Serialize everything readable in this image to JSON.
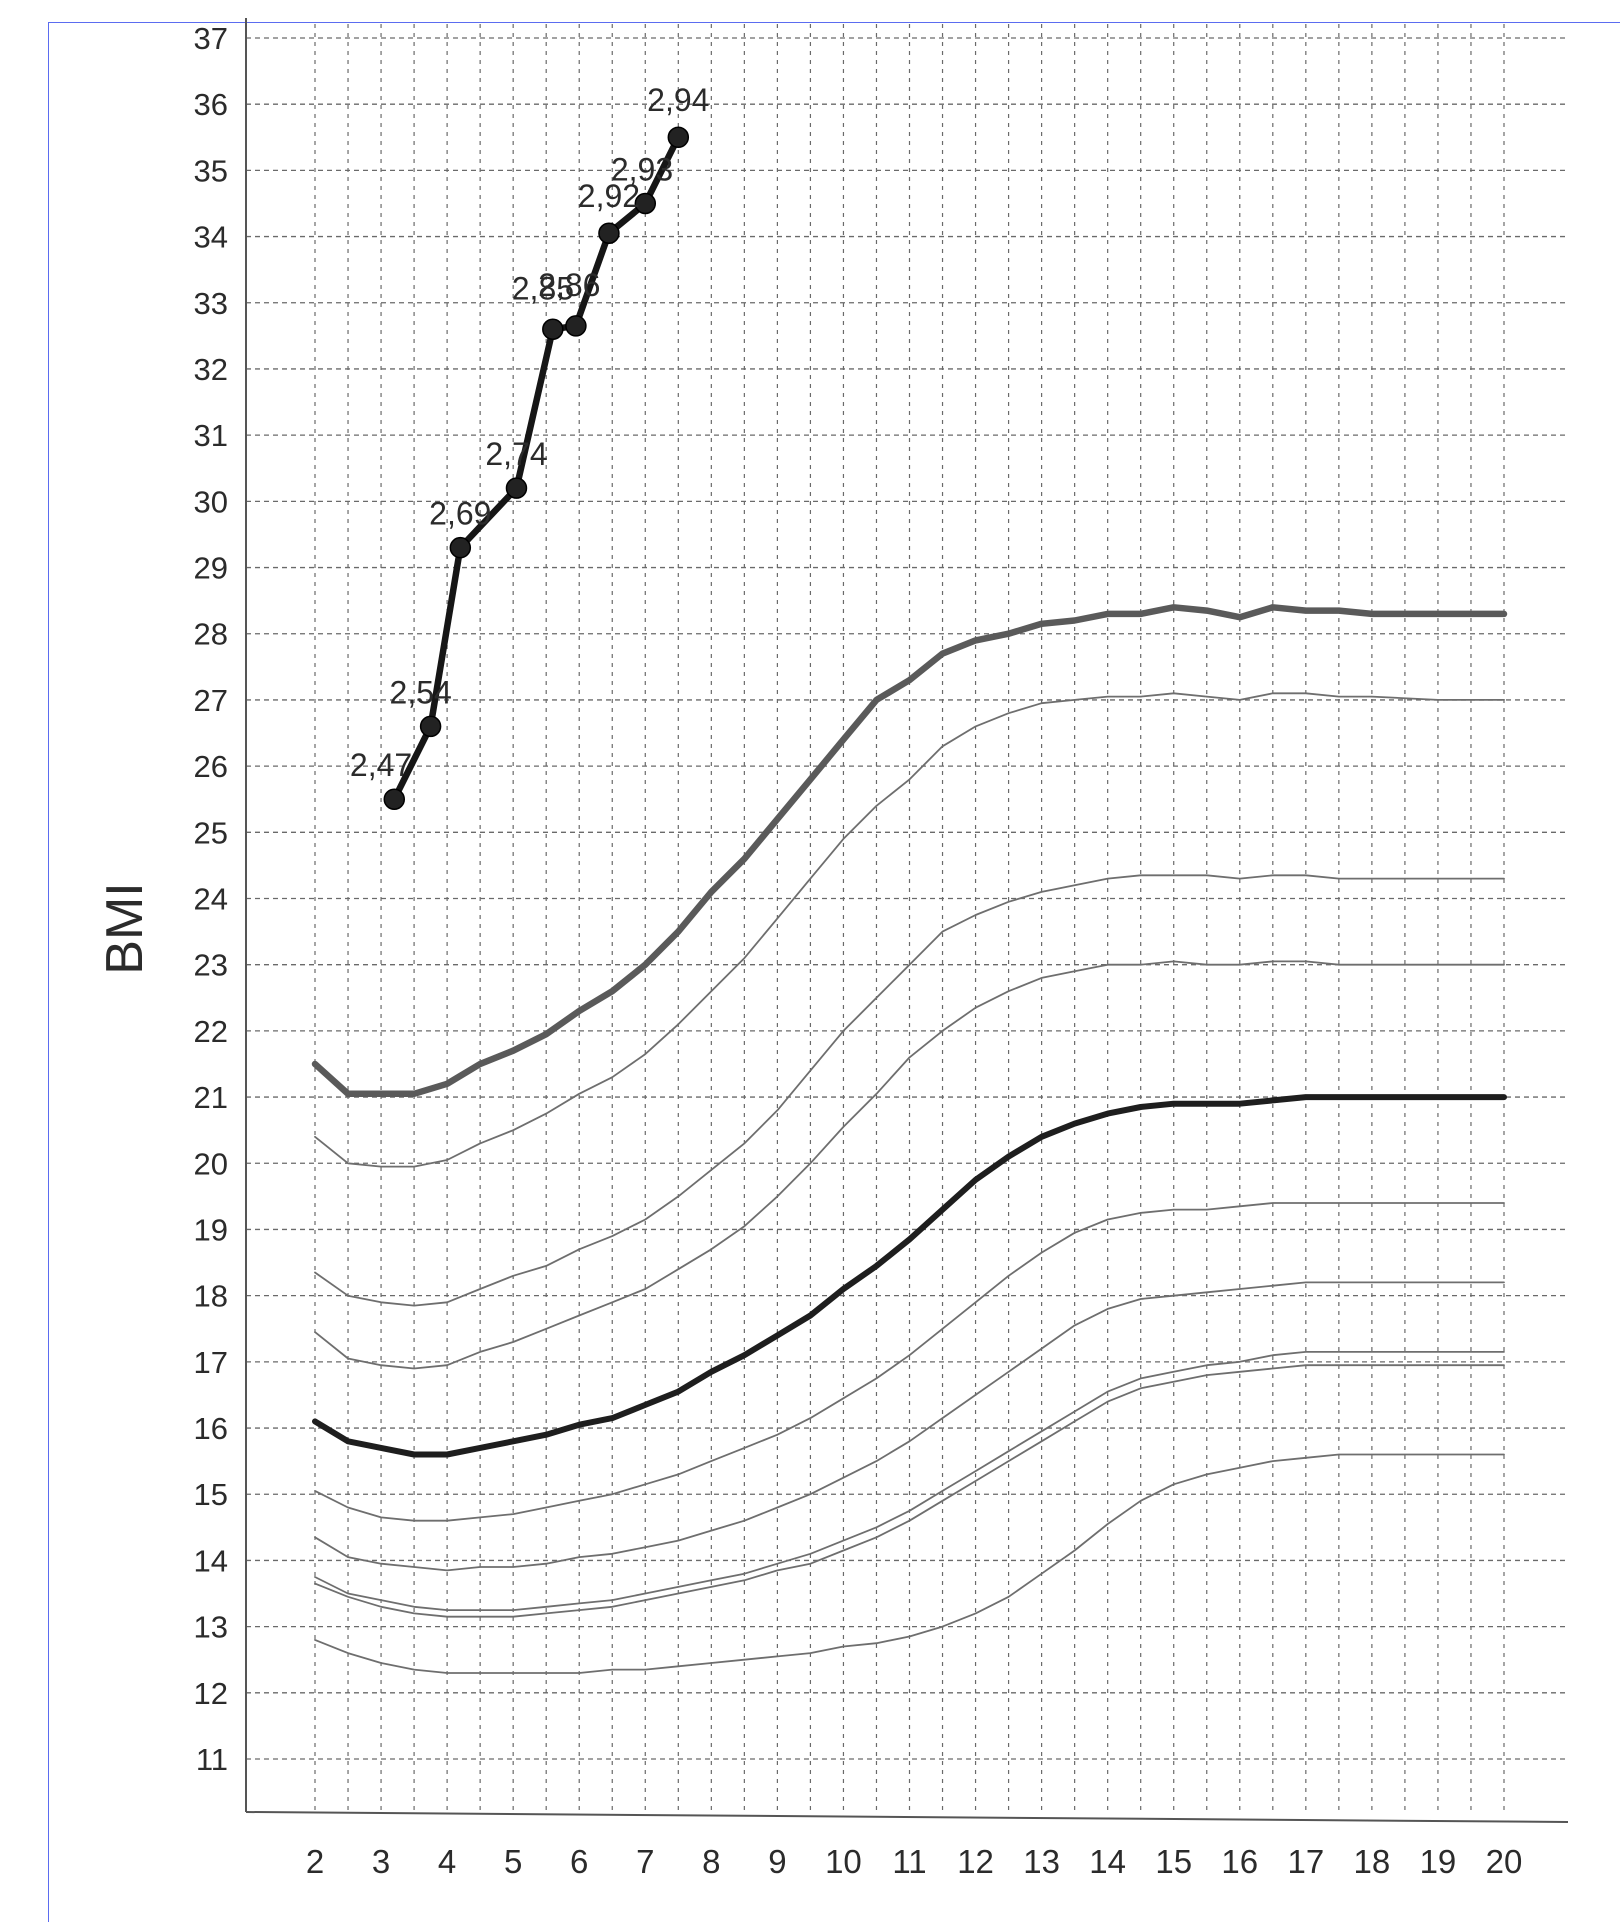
{
  "chart_data": {
    "type": "line",
    "title": "",
    "xlabel": "",
    "ylabel": "BMI",
    "xlim": [
      2,
      20
    ],
    "ylim": [
      11,
      37
    ],
    "x_ticks": [
      2,
      3,
      4,
      5,
      6,
      7,
      8,
      9,
      10,
      11,
      12,
      13,
      14,
      15,
      16,
      17,
      18,
      19,
      20
    ],
    "y_ticks": [
      11,
      12,
      13,
      14,
      15,
      16,
      17,
      18,
      19,
      20,
      21,
      22,
      23,
      24,
      25,
      26,
      27,
      28,
      29,
      30,
      31,
      32,
      33,
      34,
      35,
      36,
      37
    ],
    "grid": true,
    "reference_curves": [
      {
        "role": "upper-thick",
        "x": [
          2,
          2.5,
          3,
          3.5,
          4,
          4.5,
          5,
          5.5,
          6,
          6.5,
          7,
          7.5,
          8,
          8.5,
          9,
          9.5,
          10,
          10.5,
          11,
          11.5,
          12,
          12.5,
          13,
          13.5,
          14,
          14.5,
          15,
          15.5,
          16,
          16.5,
          17,
          17.5,
          18,
          19,
          20
        ],
        "y": [
          21.5,
          21.05,
          21.05,
          21.05,
          21.2,
          21.5,
          21.7,
          21.95,
          22.3,
          22.6,
          23.0,
          23.5,
          24.1,
          24.6,
          25.2,
          25.8,
          26.4,
          27.0,
          27.3,
          27.7,
          27.9,
          28.0,
          28.15,
          28.2,
          28.3,
          28.3,
          28.4,
          28.35,
          28.25,
          28.4,
          28.35,
          28.35,
          28.3,
          28.3,
          28.3
        ]
      },
      {
        "role": "thin",
        "x": [
          2,
          2.5,
          3,
          3.5,
          4,
          4.5,
          5,
          5.5,
          6,
          6.5,
          7,
          7.5,
          8,
          8.5,
          9,
          9.5,
          10,
          10.5,
          11,
          11.5,
          12,
          12.5,
          13,
          13.5,
          14,
          14.5,
          15,
          15.5,
          16,
          16.5,
          17,
          17.5,
          18,
          19,
          20
        ],
        "y": [
          20.4,
          20.0,
          19.95,
          19.95,
          20.05,
          20.3,
          20.5,
          20.75,
          21.05,
          21.3,
          21.65,
          22.1,
          22.6,
          23.1,
          23.7,
          24.3,
          24.9,
          25.4,
          25.8,
          26.3,
          26.6,
          26.8,
          26.95,
          27.0,
          27.05,
          27.05,
          27.1,
          27.05,
          27.0,
          27.1,
          27.1,
          27.05,
          27.05,
          27.0,
          27.0
        ]
      },
      {
        "role": "thin",
        "x": [
          2,
          2.5,
          3,
          3.5,
          4,
          4.5,
          5,
          5.5,
          6,
          6.5,
          7,
          7.5,
          8,
          8.5,
          9,
          9.5,
          10,
          10.5,
          11,
          11.5,
          12,
          12.5,
          13,
          13.5,
          14,
          14.5,
          15,
          15.5,
          16,
          16.5,
          17,
          17.5,
          18,
          19,
          20
        ],
        "y": [
          18.35,
          18.0,
          17.9,
          17.85,
          17.9,
          18.1,
          18.3,
          18.45,
          18.7,
          18.9,
          19.15,
          19.5,
          19.9,
          20.3,
          20.8,
          21.4,
          22.0,
          22.5,
          23.0,
          23.5,
          23.75,
          23.95,
          24.1,
          24.2,
          24.3,
          24.35,
          24.35,
          24.35,
          24.3,
          24.35,
          24.35,
          24.3,
          24.3,
          24.3,
          24.3
        ]
      },
      {
        "role": "thin",
        "x": [
          2,
          2.5,
          3,
          3.5,
          4,
          4.5,
          5,
          5.5,
          6,
          6.5,
          7,
          7.5,
          8,
          8.5,
          9,
          9.5,
          10,
          10.5,
          11,
          11.5,
          12,
          12.5,
          13,
          13.5,
          14,
          14.5,
          15,
          15.5,
          16,
          16.5,
          17,
          17.5,
          18,
          19,
          20
        ],
        "y": [
          17.45,
          17.05,
          16.95,
          16.9,
          16.95,
          17.15,
          17.3,
          17.5,
          17.7,
          17.9,
          18.1,
          18.4,
          18.7,
          19.05,
          19.5,
          20.0,
          20.55,
          21.05,
          21.6,
          22.0,
          22.35,
          22.6,
          22.8,
          22.9,
          23.0,
          23.0,
          23.05,
          23.0,
          23.0,
          23.05,
          23.05,
          23.0,
          23.0,
          23.0,
          23.0
        ]
      },
      {
        "role": "median-thick",
        "x": [
          2,
          2.5,
          3,
          3.5,
          4,
          4.5,
          5,
          5.5,
          6,
          6.5,
          7,
          7.5,
          8,
          8.5,
          9,
          9.5,
          10,
          10.5,
          11,
          11.5,
          12,
          12.5,
          13,
          13.5,
          14,
          14.5,
          15,
          15.5,
          16,
          16.5,
          17,
          17.5,
          18,
          19,
          20
        ],
        "y": [
          16.1,
          15.8,
          15.7,
          15.6,
          15.6,
          15.7,
          15.8,
          15.9,
          16.05,
          16.15,
          16.35,
          16.55,
          16.85,
          17.1,
          17.4,
          17.7,
          18.1,
          18.45,
          18.85,
          19.3,
          19.75,
          20.1,
          20.4,
          20.6,
          20.75,
          20.85,
          20.9,
          20.9,
          20.9,
          20.95,
          21.0,
          21.0,
          21.0,
          21.0,
          21.0
        ]
      },
      {
        "role": "thin",
        "x": [
          2,
          2.5,
          3,
          3.5,
          4,
          4.5,
          5,
          5.5,
          6,
          6.5,
          7,
          7.5,
          8,
          8.5,
          9,
          9.5,
          10,
          10.5,
          11,
          11.5,
          12,
          12.5,
          13,
          13.5,
          14,
          14.5,
          15,
          15.5,
          16,
          16.5,
          17,
          17.5,
          18,
          19,
          20
        ],
        "y": [
          15.05,
          14.8,
          14.65,
          14.6,
          14.6,
          14.65,
          14.7,
          14.8,
          14.9,
          15.0,
          15.15,
          15.3,
          15.5,
          15.7,
          15.9,
          16.15,
          16.45,
          16.75,
          17.1,
          17.5,
          17.9,
          18.3,
          18.65,
          18.95,
          19.15,
          19.25,
          19.3,
          19.3,
          19.35,
          19.4,
          19.4,
          19.4,
          19.4,
          19.4,
          19.4
        ]
      },
      {
        "role": "thin",
        "x": [
          2,
          2.5,
          3,
          3.5,
          4,
          4.5,
          5,
          5.5,
          6,
          6.5,
          7,
          7.5,
          8,
          8.5,
          9,
          9.5,
          10,
          10.5,
          11,
          11.5,
          12,
          12.5,
          13,
          13.5,
          14,
          14.5,
          15,
          15.5,
          16,
          16.5,
          17,
          17.5,
          18,
          19,
          20
        ],
        "y": [
          14.35,
          14.05,
          13.95,
          13.9,
          13.85,
          13.9,
          13.9,
          13.95,
          14.05,
          14.1,
          14.2,
          14.3,
          14.45,
          14.6,
          14.8,
          15.0,
          15.25,
          15.5,
          15.8,
          16.15,
          16.5,
          16.85,
          17.2,
          17.55,
          17.8,
          17.95,
          18.0,
          18.05,
          18.1,
          18.15,
          18.2,
          18.2,
          18.2,
          18.2,
          18.2
        ]
      },
      {
        "role": "thin",
        "x": [
          2,
          2.5,
          3,
          3.5,
          4,
          4.5,
          5,
          5.5,
          6,
          6.5,
          7,
          7.5,
          8,
          8.5,
          9,
          9.5,
          10,
          10.5,
          11,
          11.5,
          12,
          12.5,
          13,
          13.5,
          14,
          14.5,
          15,
          15.5,
          16,
          16.5,
          17,
          17.5,
          18,
          19,
          20
        ],
        "y": [
          13.75,
          13.5,
          13.4,
          13.3,
          13.25,
          13.25,
          13.25,
          13.3,
          13.35,
          13.4,
          13.5,
          13.6,
          13.7,
          13.8,
          13.95,
          14.1,
          14.3,
          14.5,
          14.75,
          15.05,
          15.35,
          15.65,
          15.95,
          16.25,
          16.55,
          16.75,
          16.85,
          16.95,
          17.0,
          17.1,
          17.15,
          17.15,
          17.15,
          17.15,
          17.15
        ]
      },
      {
        "role": "thin",
        "x": [
          2,
          2.5,
          3,
          3.5,
          4,
          4.5,
          5,
          5.5,
          6,
          6.5,
          7,
          7.5,
          8,
          8.5,
          9,
          9.5,
          10,
          10.5,
          11,
          11.5,
          12,
          12.5,
          13,
          13.5,
          14,
          14.5,
          15,
          15.5,
          16,
          16.5,
          17,
          17.5,
          18,
          19,
          20
        ],
        "y": [
          13.65,
          13.45,
          13.3,
          13.2,
          13.15,
          13.15,
          13.15,
          13.2,
          13.25,
          13.3,
          13.4,
          13.5,
          13.6,
          13.7,
          13.85,
          13.95,
          14.15,
          14.35,
          14.6,
          14.9,
          15.2,
          15.5,
          15.8,
          16.1,
          16.4,
          16.6,
          16.7,
          16.8,
          16.85,
          16.9,
          16.95,
          16.95,
          16.95,
          16.95,
          16.95
        ]
      },
      {
        "role": "thin",
        "x": [
          2,
          2.5,
          3,
          3.5,
          4,
          4.5,
          5,
          5.5,
          6,
          6.5,
          7,
          7.5,
          8,
          8.5,
          9,
          9.5,
          10,
          10.5,
          11,
          11.5,
          12,
          12.5,
          13,
          13.5,
          14,
          14.5,
          15,
          15.5,
          16,
          16.5,
          17,
          17.5,
          18,
          19,
          20
        ],
        "y": [
          12.8,
          12.6,
          12.45,
          12.35,
          12.3,
          12.3,
          12.3,
          12.3,
          12.3,
          12.35,
          12.35,
          12.4,
          12.45,
          12.5,
          12.55,
          12.6,
          12.7,
          12.75,
          12.85,
          13.0,
          13.2,
          13.45,
          13.8,
          14.15,
          14.55,
          14.9,
          15.15,
          15.3,
          15.4,
          15.5,
          15.55,
          15.6,
          15.6,
          15.6,
          15.6
        ]
      }
    ],
    "series": [
      {
        "x": [
          3.2,
          3.75,
          4.2,
          5.05,
          5.6,
          5.95,
          6.45,
          7.0,
          7.5
        ],
        "y": [
          25.5,
          26.6,
          29.3,
          30.2,
          32.6,
          32.65,
          34.05,
          34.5,
          35.5
        ]
      }
    ],
    "annotations": [
      {
        "text": "2,47",
        "x": 3.0,
        "y": 26.0
      },
      {
        "text": "2,54",
        "x": 3.6,
        "y": 27.1
      },
      {
        "text": "2,69",
        "x": 4.2,
        "y": 29.8
      },
      {
        "text": "2,74",
        "x": 5.05,
        "y": 30.7
      },
      {
        "text": "2,85",
        "x": 5.45,
        "y": 33.2
      },
      {
        "text": "2,86",
        "x": 5.85,
        "y": 33.25
      },
      {
        "text": "2,92",
        "x": 6.45,
        "y": 34.6
      },
      {
        "text": "2,93",
        "x": 6.95,
        "y": 35.0
      },
      {
        "text": "2,94",
        "x": 7.5,
        "y": 36.05
      }
    ]
  }
}
